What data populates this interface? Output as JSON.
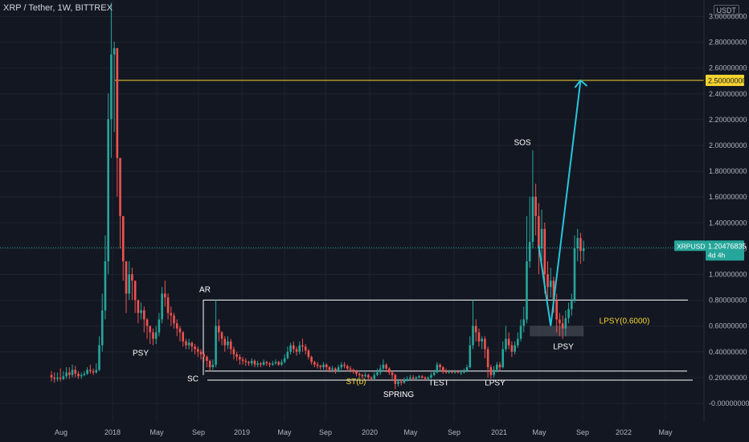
{
  "title": "XRP / Tether, 1W, BITTREX",
  "currency": "USDT",
  "chart_data": {
    "type": "candlestick",
    "symbol": "XRPUSDT",
    "interval": "1W",
    "exchange": "BITTREX",
    "y_ticks": [
      "3.00000000",
      "2.80000000",
      "2.60000000",
      "2.40000000",
      "2.20000000",
      "2.00000000",
      "1.80000000",
      "1.60000000",
      "1.40000000",
      "1.20000000",
      "1.00000000",
      "0.80000000",
      "0.60000000",
      "0.40000000",
      "0.20000000",
      "-0.00000000"
    ],
    "x_ticks": [
      "Aug",
      "2018",
      "May",
      "Sep",
      "2019",
      "May",
      "Sep",
      "2020",
      "May",
      "Sep",
      "2021",
      "May",
      "Sep",
      "2022",
      "May"
    ],
    "last_price": {
      "label": "XRPUSDT",
      "value": "1.20476835",
      "countdown": "4d 4h",
      "color": "#26a69a"
    },
    "target": {
      "value": "2.50000000",
      "color": "#f5d32f"
    },
    "candles": [
      [
        0.22,
        0.2,
        0.25,
        0.17
      ],
      [
        0.2,
        0.19,
        0.24,
        0.16
      ],
      [
        0.19,
        0.2,
        0.24,
        0.17
      ],
      [
        0.2,
        0.19,
        0.27,
        0.17
      ],
      [
        0.19,
        0.21,
        0.25,
        0.18
      ],
      [
        0.21,
        0.24,
        0.28,
        0.19
      ],
      [
        0.24,
        0.22,
        0.28,
        0.19
      ],
      [
        0.22,
        0.26,
        0.3,
        0.2
      ],
      [
        0.26,
        0.23,
        0.29,
        0.2
      ],
      [
        0.23,
        0.21,
        0.25,
        0.19
      ],
      [
        0.21,
        0.22,
        0.24,
        0.19
      ],
      [
        0.22,
        0.23,
        0.25,
        0.21
      ],
      [
        0.23,
        0.26,
        0.28,
        0.22
      ],
      [
        0.26,
        0.25,
        0.3,
        0.23
      ],
      [
        0.25,
        0.24,
        0.27,
        0.22
      ],
      [
        0.24,
        0.26,
        0.31,
        0.23
      ],
      [
        0.26,
        0.45,
        0.52,
        0.25
      ],
      [
        0.45,
        0.72,
        0.85,
        0.4
      ],
      [
        0.72,
        1.1,
        1.3,
        0.65
      ],
      [
        1.1,
        2.2,
        2.4,
        1.0
      ],
      [
        2.2,
        2.7,
        3.1,
        1.9
      ],
      [
        2.7,
        2.75,
        2.8,
        2.1
      ],
      [
        2.75,
        1.9,
        2.0,
        1.6
      ],
      [
        1.9,
        1.45,
        1.6,
        1.2
      ],
      [
        1.45,
        1.1,
        1.3,
        0.95
      ],
      [
        1.1,
        0.85,
        0.95,
        0.7
      ],
      [
        0.85,
        1.0,
        1.1,
        0.8
      ],
      [
        1.0,
        0.95,
        1.05,
        0.8
      ],
      [
        0.95,
        0.8,
        0.9,
        0.7
      ],
      [
        0.8,
        0.7,
        0.8,
        0.62
      ],
      [
        0.7,
        0.72,
        0.78,
        0.65
      ],
      [
        0.72,
        0.65,
        0.75,
        0.55
      ],
      [
        0.65,
        0.6,
        0.66,
        0.5
      ],
      [
        0.6,
        0.55,
        0.6,
        0.46
      ],
      [
        0.55,
        0.5,
        0.58,
        0.45
      ],
      [
        0.5,
        0.55,
        0.6,
        0.46
      ],
      [
        0.55,
        0.65,
        0.7,
        0.52
      ],
      [
        0.65,
        0.85,
        0.9,
        0.62
      ],
      [
        0.85,
        0.82,
        0.95,
        0.75
      ],
      [
        0.82,
        0.7,
        0.85,
        0.65
      ],
      [
        0.7,
        0.68,
        0.75,
        0.6
      ],
      [
        0.68,
        0.62,
        0.7,
        0.58
      ],
      [
        0.62,
        0.58,
        0.65,
        0.52
      ],
      [
        0.58,
        0.55,
        0.6,
        0.48
      ],
      [
        0.55,
        0.48,
        0.56,
        0.44
      ],
      [
        0.48,
        0.45,
        0.5,
        0.42
      ],
      [
        0.45,
        0.47,
        0.5,
        0.42
      ],
      [
        0.47,
        0.44,
        0.48,
        0.4
      ],
      [
        0.44,
        0.42,
        0.46,
        0.38
      ],
      [
        0.42,
        0.4,
        0.44,
        0.36
      ],
      [
        0.4,
        0.38,
        0.42,
        0.34
      ],
      [
        0.38,
        0.36,
        0.4,
        0.32
      ],
      [
        0.36,
        0.33,
        0.37,
        0.28
      ],
      [
        0.33,
        0.28,
        0.34,
        0.25
      ],
      [
        0.28,
        0.3,
        0.34,
        0.26
      ],
      [
        0.3,
        0.6,
        0.8,
        0.28
      ],
      [
        0.6,
        0.55,
        0.65,
        0.48
      ],
      [
        0.55,
        0.5,
        0.56,
        0.45
      ],
      [
        0.5,
        0.45,
        0.52,
        0.4
      ],
      [
        0.45,
        0.48,
        0.52,
        0.42
      ],
      [
        0.48,
        0.42,
        0.5,
        0.38
      ],
      [
        0.42,
        0.38,
        0.44,
        0.34
      ],
      [
        0.38,
        0.36,
        0.4,
        0.33
      ],
      [
        0.36,
        0.34,
        0.38,
        0.3
      ],
      [
        0.34,
        0.33,
        0.36,
        0.3
      ],
      [
        0.33,
        0.32,
        0.35,
        0.29
      ],
      [
        0.32,
        0.31,
        0.33,
        0.29
      ],
      [
        0.31,
        0.33,
        0.35,
        0.29
      ],
      [
        0.33,
        0.3,
        0.34,
        0.28
      ],
      [
        0.3,
        0.31,
        0.33,
        0.28
      ],
      [
        0.31,
        0.3,
        0.32,
        0.28
      ],
      [
        0.3,
        0.32,
        0.34,
        0.29
      ],
      [
        0.32,
        0.31,
        0.33,
        0.29
      ],
      [
        0.31,
        0.3,
        0.32,
        0.28
      ],
      [
        0.3,
        0.31,
        0.33,
        0.29
      ],
      [
        0.31,
        0.32,
        0.34,
        0.3
      ],
      [
        0.32,
        0.3,
        0.33,
        0.29
      ],
      [
        0.3,
        0.32,
        0.34,
        0.29
      ],
      [
        0.32,
        0.35,
        0.38,
        0.31
      ],
      [
        0.35,
        0.4,
        0.44,
        0.34
      ],
      [
        0.4,
        0.45,
        0.47,
        0.38
      ],
      [
        0.45,
        0.42,
        0.48,
        0.39
      ],
      [
        0.42,
        0.4,
        0.44,
        0.37
      ],
      [
        0.4,
        0.45,
        0.48,
        0.38
      ],
      [
        0.45,
        0.44,
        0.5,
        0.4
      ],
      [
        0.44,
        0.41,
        0.46,
        0.38
      ],
      [
        0.41,
        0.36,
        0.42,
        0.34
      ],
      [
        0.36,
        0.32,
        0.37,
        0.3
      ],
      [
        0.32,
        0.3,
        0.33,
        0.28
      ],
      [
        0.3,
        0.29,
        0.32,
        0.27
      ],
      [
        0.29,
        0.28,
        0.3,
        0.26
      ],
      [
        0.28,
        0.3,
        0.32,
        0.26
      ],
      [
        0.3,
        0.28,
        0.31,
        0.25
      ],
      [
        0.28,
        0.26,
        0.29,
        0.24
      ],
      [
        0.26,
        0.27,
        0.29,
        0.24
      ],
      [
        0.27,
        0.25,
        0.28,
        0.23
      ],
      [
        0.25,
        0.28,
        0.3,
        0.24
      ],
      [
        0.28,
        0.3,
        0.32,
        0.26
      ],
      [
        0.3,
        0.29,
        0.32,
        0.27
      ],
      [
        0.29,
        0.27,
        0.3,
        0.25
      ],
      [
        0.27,
        0.26,
        0.29,
        0.24
      ],
      [
        0.26,
        0.25,
        0.27,
        0.23
      ],
      [
        0.25,
        0.23,
        0.26,
        0.21
      ],
      [
        0.23,
        0.22,
        0.24,
        0.2
      ],
      [
        0.22,
        0.21,
        0.23,
        0.19
      ],
      [
        0.21,
        0.22,
        0.24,
        0.2
      ],
      [
        0.22,
        0.2,
        0.23,
        0.18
      ],
      [
        0.2,
        0.19,
        0.21,
        0.18
      ],
      [
        0.19,
        0.22,
        0.24,
        0.18
      ],
      [
        0.22,
        0.24,
        0.27,
        0.21
      ],
      [
        0.24,
        0.27,
        0.3,
        0.22
      ],
      [
        0.27,
        0.3,
        0.34,
        0.25
      ],
      [
        0.3,
        0.27,
        0.31,
        0.24
      ],
      [
        0.27,
        0.24,
        0.28,
        0.22
      ],
      [
        0.24,
        0.22,
        0.25,
        0.18
      ],
      [
        0.22,
        0.15,
        0.23,
        0.11
      ],
      [
        0.15,
        0.17,
        0.19,
        0.13
      ],
      [
        0.17,
        0.16,
        0.19,
        0.14
      ],
      [
        0.16,
        0.18,
        0.2,
        0.15
      ],
      [
        0.18,
        0.19,
        0.21,
        0.17
      ],
      [
        0.19,
        0.2,
        0.22,
        0.18
      ],
      [
        0.2,
        0.19,
        0.22,
        0.18
      ],
      [
        0.19,
        0.2,
        0.21,
        0.18
      ],
      [
        0.2,
        0.21,
        0.22,
        0.19
      ],
      [
        0.21,
        0.2,
        0.22,
        0.19
      ],
      [
        0.2,
        0.19,
        0.21,
        0.18
      ],
      [
        0.19,
        0.2,
        0.21,
        0.18
      ],
      [
        0.2,
        0.22,
        0.24,
        0.19
      ],
      [
        0.22,
        0.24,
        0.26,
        0.21
      ],
      [
        0.24,
        0.3,
        0.32,
        0.23
      ],
      [
        0.3,
        0.28,
        0.31,
        0.25
      ],
      [
        0.28,
        0.25,
        0.29,
        0.23
      ],
      [
        0.25,
        0.24,
        0.27,
        0.23
      ],
      [
        0.24,
        0.25,
        0.26,
        0.23
      ],
      [
        0.25,
        0.24,
        0.26,
        0.23
      ],
      [
        0.24,
        0.25,
        0.26,
        0.23
      ],
      [
        0.25,
        0.24,
        0.26,
        0.23
      ],
      [
        0.24,
        0.24,
        0.26,
        0.22
      ],
      [
        0.24,
        0.25,
        0.27,
        0.23
      ],
      [
        0.25,
        0.28,
        0.3,
        0.24
      ],
      [
        0.28,
        0.45,
        0.52,
        0.27
      ],
      [
        0.45,
        0.6,
        0.8,
        0.42
      ],
      [
        0.6,
        0.55,
        0.65,
        0.48
      ],
      [
        0.55,
        0.48,
        0.58,
        0.44
      ],
      [
        0.48,
        0.5,
        0.52,
        0.42
      ],
      [
        0.5,
        0.42,
        0.52,
        0.35
      ],
      [
        0.42,
        0.28,
        0.44,
        0.2
      ],
      [
        0.28,
        0.22,
        0.3,
        0.19
      ],
      [
        0.22,
        0.26,
        0.29,
        0.2
      ],
      [
        0.26,
        0.3,
        0.32,
        0.24
      ],
      [
        0.3,
        0.28,
        0.32,
        0.25
      ],
      [
        0.28,
        0.42,
        0.48,
        0.27
      ],
      [
        0.42,
        0.5,
        0.6,
        0.4
      ],
      [
        0.5,
        0.45,
        0.55,
        0.42
      ],
      [
        0.45,
        0.4,
        0.48,
        0.36
      ],
      [
        0.4,
        0.45,
        0.48,
        0.38
      ],
      [
        0.45,
        0.5,
        0.55,
        0.43
      ],
      [
        0.5,
        0.6,
        0.65,
        0.48
      ],
      [
        0.6,
        0.65,
        0.75,
        0.55
      ],
      [
        0.65,
        1.1,
        1.45,
        0.62
      ],
      [
        1.1,
        1.25,
        1.6,
        1.05
      ],
      [
        1.25,
        1.6,
        1.96,
        1.2
      ],
      [
        1.6,
        1.45,
        1.7,
        1.3
      ],
      [
        1.45,
        1.2,
        1.55,
        1.0
      ],
      [
        1.2,
        1.35,
        1.5,
        1.1
      ],
      [
        1.35,
        1.0,
        1.4,
        0.85
      ],
      [
        1.0,
        0.9,
        1.1,
        0.8
      ],
      [
        0.9,
        0.95,
        1.05,
        0.82
      ],
      [
        0.95,
        0.8,
        0.98,
        0.7
      ],
      [
        0.8,
        0.65,
        0.85,
        0.55
      ],
      [
        0.65,
        0.62,
        0.7,
        0.52
      ],
      [
        0.62,
        0.58,
        0.68,
        0.5
      ],
      [
        0.58,
        0.66,
        0.72,
        0.52
      ],
      [
        0.66,
        0.73,
        0.78,
        0.62
      ],
      [
        0.73,
        0.8,
        0.85,
        0.68
      ],
      [
        0.8,
        1.2,
        1.3,
        0.78
      ],
      [
        1.2,
        1.28,
        1.35,
        1.1
      ],
      [
        1.28,
        1.18,
        1.32,
        1.08
      ],
      [
        1.18,
        1.2,
        1.26,
        1.1
      ]
    ],
    "annotations": [
      {
        "text": "SOS",
        "price": 2.0
      },
      {
        "text": "AR",
        "price": 0.86
      },
      {
        "text": "PSY",
        "price": 0.37
      },
      {
        "text": "SC",
        "price": 0.17
      },
      {
        "text": "ST(b)",
        "price": 0.15
      },
      {
        "text": "SPRING",
        "price": 0.05
      },
      {
        "text": "TEST",
        "price": 0.14
      },
      {
        "text": "LPSY",
        "price": 0.14
      },
      {
        "text": "LPSY",
        "price": 0.42
      },
      {
        "text": "LPSY(0.6000)",
        "price": 0.62
      }
    ],
    "levels": [
      {
        "name": "range-top",
        "value": 0.8
      },
      {
        "name": "range-mid",
        "value": 0.25
      },
      {
        "name": "range-bottom",
        "value": 0.18
      },
      {
        "name": "target",
        "value": 2.5
      }
    ],
    "projection": [
      {
        "candle": 163,
        "price": 1.22
      },
      {
        "candle": 167,
        "price": 0.6
      },
      {
        "candle": 177,
        "price": 2.5
      }
    ],
    "lpsy_zone": {
      "from_candle": 160,
      "to_candle": 178,
      "low": 0.52,
      "high": 0.6
    }
  }
}
